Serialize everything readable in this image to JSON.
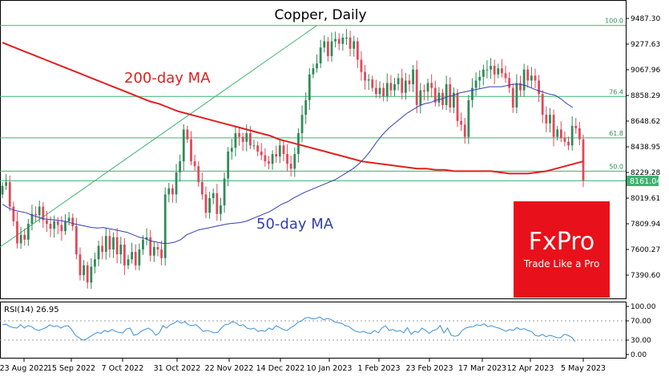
{
  "chart_data": [
    {
      "type": "candlestick",
      "title": "Copper, Daily",
      "ylim": [
        7180,
        9540
      ],
      "y_ticks": [
        "9487.30",
        "9277.63",
        "9067.96",
        "8858.29",
        "8648.62",
        "8438.95",
        "8229.28",
        "8019.61",
        "7809.94",
        "7600.27",
        "7390.60"
      ],
      "last_price": "8161.04",
      "x_ticks": [
        "23 Aug 2022",
        "15 Sep 2022",
        "7 Oct 2022",
        "31 Oct 2022",
        "22 Nov 2022",
        "14 Dec 2022",
        "10 Jan 2023",
        "1 Feb 2023",
        "23 Feb 2023",
        "17 Mar 2023",
        "12 Apr 2023",
        "5 May 2023"
      ],
      "fib_levels": [
        {
          "label": "100.0",
          "value": 9430
        },
        {
          "label": "76.4",
          "value": 8850
        },
        {
          "label": "61.8",
          "value": 8512
        },
        {
          "label": "50.0",
          "value": 8240
        },
        {
          "label": "",
          "value": 8161
        }
      ],
      "close": [
        8120,
        8150,
        7950,
        7830,
        7650,
        7720,
        7680,
        7810,
        7890,
        7880,
        7950,
        7840,
        7810,
        7770,
        7830,
        7800,
        7750,
        7830,
        7860,
        7790,
        7560,
        7390,
        7470,
        7330,
        7460,
        7520,
        7630,
        7580,
        7710,
        7600,
        7700,
        7560,
        7640,
        7470,
        7520,
        7580,
        7470,
        7600,
        7680,
        7700,
        7550,
        7620,
        7600,
        7530,
        8050,
        8100,
        8050,
        8230,
        8320,
        8580,
        8500,
        8320,
        8280,
        8150,
        8050,
        7900,
        8020,
        8060,
        7890,
        7960,
        8180,
        8400,
        8430,
        8550,
        8520,
        8480,
        8550,
        8450,
        8450,
        8400,
        8370,
        8320,
        8300,
        8380,
        8360,
        8450,
        8380,
        8300,
        8260,
        8380,
        8550,
        8700,
        8820,
        9030,
        9080,
        9120,
        9250,
        9300,
        9180,
        9300,
        9320,
        9280,
        9330,
        9330,
        9240,
        9300,
        9150,
        9050,
        8980,
        8990,
        8920,
        8870,
        8920,
        8850,
        8960,
        8900,
        8950,
        9000,
        8880,
        8980,
        8950,
        9070,
        8780,
        8900,
        8890,
        8960,
        8920,
        8800,
        8880,
        8780,
        8950,
        8760,
        8880,
        8650,
        8620,
        8520,
        8820,
        8920,
        8980,
        9010,
        9070,
        9070,
        9100,
        9030,
        9080,
        9040,
        9000,
        8920,
        8760,
        8960,
        8900,
        9070,
        8980,
        9020,
        8980,
        8870,
        8700,
        8630,
        8700,
        8520,
        8580,
        8510,
        8480,
        8450,
        8610,
        8590,
        8500,
        8161
      ],
      "ma_50": [
        7970,
        7940,
        7920,
        7910,
        7900,
        7880,
        7865,
        7850,
        7845,
        7840,
        7835,
        7825,
        7810,
        7800,
        7790,
        7780,
        7775,
        7780,
        7770,
        7760,
        7750,
        7740,
        7720,
        7700,
        7690,
        7670,
        7660,
        7650,
        7650,
        7660,
        7680,
        7720,
        7740,
        7760,
        7770,
        7780,
        7790,
        7800,
        7810,
        7815,
        7820,
        7830,
        7850,
        7870,
        7890,
        7910,
        7940,
        7970,
        7990,
        8020,
        8045,
        8070,
        8090,
        8110,
        8130,
        8150,
        8170,
        8200,
        8230,
        8260,
        8300,
        8350,
        8410,
        8480,
        8540,
        8590,
        8630,
        8670,
        8710,
        8740,
        8770,
        8790,
        8800,
        8820,
        8830,
        8850,
        8860,
        8880,
        8890,
        8900,
        8910,
        8920,
        8930,
        8930,
        8930,
        8940,
        8950,
        8950,
        8940,
        8920,
        8900,
        8885,
        8870,
        8860,
        8830,
        8790,
        8760
      ],
      "ma_50_start_index": 0,
      "ma_200": [
        9290,
        9260,
        9230,
        9200,
        9170,
        9140,
        9110,
        9080,
        9050,
        9020,
        8990,
        8960,
        8930,
        8900,
        8870,
        8840,
        8810,
        8790,
        8760,
        8730,
        8710,
        8690,
        8670,
        8650,
        8630,
        8610,
        8590,
        8570,
        8550,
        8530,
        8500,
        8480,
        8460,
        8440,
        8420,
        8400,
        8380,
        8360,
        8340,
        8320,
        8310,
        8300,
        8290,
        8280,
        8270,
        8260,
        8260,
        8250,
        8250,
        8240,
        8240,
        8240,
        8240,
        8240,
        8230,
        8220,
        8220,
        8220,
        8230,
        8240,
        8260,
        8280,
        8300,
        8320
      ],
      "rsi": {
        "label": "RSI(14)",
        "value": "26.95",
        "ylim": [
          0,
          100
        ],
        "ticks": [
          "100.00",
          "70.00",
          "30.00",
          "0.00"
        ],
        "values": [
          62,
          63,
          58,
          56,
          55,
          62,
          55,
          60,
          58,
          52,
          50,
          53,
          56,
          62,
          58,
          60,
          55,
          59,
          60,
          52,
          40,
          35,
          30,
          32,
          37,
          42,
          46,
          44,
          50,
          47,
          52,
          48,
          46,
          45,
          53,
          55,
          40,
          42,
          48,
          52,
          55,
          50,
          40,
          45,
          60,
          55,
          62,
          65,
          70,
          65,
          68,
          62,
          60,
          62,
          56,
          48,
          50,
          48,
          45,
          46,
          55,
          62,
          63,
          68,
          66,
          60,
          62,
          55,
          53,
          55,
          48,
          50,
          48,
          55,
          52,
          60,
          56,
          52,
          50,
          56,
          60,
          67,
          70,
          76,
          77,
          74,
          75,
          78,
          72,
          75,
          73,
          68,
          66,
          65,
          60,
          58,
          52,
          48,
          46,
          48,
          45,
          44,
          50,
          45,
          55,
          60,
          50,
          52,
          48,
          50,
          45,
          56,
          42,
          48,
          46,
          55,
          50,
          44,
          50,
          52,
          60,
          45,
          55,
          40,
          38,
          40,
          50,
          55,
          57,
          58,
          62,
          60,
          64,
          58,
          60,
          57,
          55,
          52,
          48,
          52,
          50,
          56,
          52,
          54,
          50,
          48,
          40,
          38,
          42,
          37,
          40,
          38,
          35,
          35,
          42,
          40,
          36,
          27
        ]
      }
    }
  ],
  "annotations": {
    "ma200_label": "200-day MA",
    "ma50_label": "50-day MA"
  },
  "logo": {
    "text": "FxPro",
    "tagline": "Trade Like a Pro",
    "color": "#e8101a"
  },
  "colors": {
    "up": "#2e8b57",
    "down": "#e0485a",
    "ma200": "#e02020",
    "ma50": "#3040b0",
    "grid": "#3cb371",
    "rsi": "#3a8fd8",
    "last_price_bg": "#3cb371"
  }
}
